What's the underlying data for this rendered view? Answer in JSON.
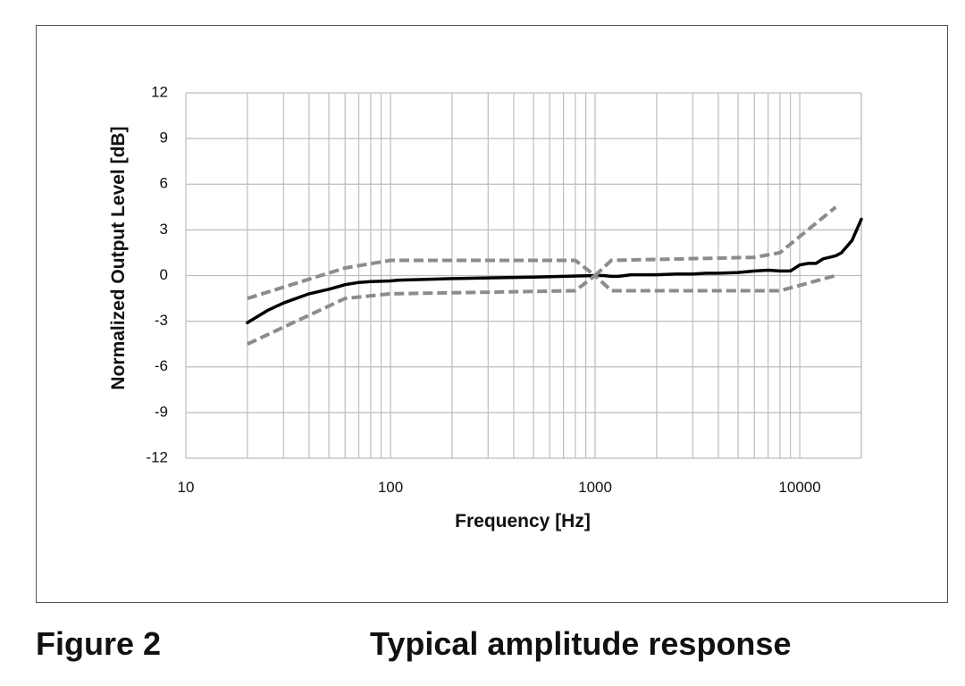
{
  "caption": {
    "label": "Figure 2",
    "text": "Typical amplitude response"
  },
  "chart_data": {
    "type": "line",
    "title": "",
    "xlabel": "Frequency [Hz]",
    "ylabel": "Normalized Output Level [dB]",
    "x_scale": "log",
    "xlim": [
      10,
      20000
    ],
    "ylim": [
      -12,
      12
    ],
    "x_ticks": [
      10,
      100,
      1000,
      10000
    ],
    "x_tick_labels": [
      "10",
      "100",
      "1000",
      "10000"
    ],
    "y_ticks": [
      12,
      9,
      6,
      3,
      0,
      -3,
      -6,
      -9,
      -12
    ],
    "y_tick_labels": [
      "12",
      "9",
      "6",
      "3",
      "0",
      "-3",
      "-6",
      "-9",
      "-12"
    ],
    "grid": true,
    "colors": {
      "response": "#000000",
      "tolerance": "#8c8c8c",
      "grid": "#bdbdbd"
    },
    "series": [
      {
        "style": "solid",
        "color": "#000000",
        "x": [
          20,
          25,
          30,
          40,
          50,
          60,
          70,
          80,
          100,
          110,
          150,
          200,
          300,
          500,
          700,
          1000,
          1100,
          1200,
          1300,
          1500,
          2000,
          2500,
          3000,
          3500,
          4000,
          5000,
          6000,
          7000,
          8000,
          9000,
          10000,
          11000,
          12000,
          13000,
          14000,
          15000,
          16000,
          18000,
          20000
        ],
        "y": [
          -3.1,
          -2.3,
          -1.8,
          -1.2,
          -0.9,
          -0.6,
          -0.45,
          -0.4,
          -0.35,
          -0.3,
          -0.25,
          -0.2,
          -0.15,
          -0.1,
          -0.05,
          0.0,
          0.0,
          -0.05,
          -0.05,
          0.05,
          0.05,
          0.1,
          0.1,
          0.15,
          0.15,
          0.2,
          0.3,
          0.35,
          0.3,
          0.3,
          0.7,
          0.8,
          0.8,
          1.1,
          1.2,
          1.3,
          1.5,
          2.3,
          3.7
        ]
      },
      {
        "style": "dashed",
        "color": "#8c8c8c",
        "x": [
          20,
          60,
          100,
          800,
          1000,
          1200,
          6000,
          8000,
          15000
        ],
        "y": [
          -1.5,
          0.5,
          1.0,
          1.0,
          0.0,
          1.0,
          1.2,
          1.5,
          4.5
        ]
      },
      {
        "style": "dashed",
        "color": "#8c8c8c",
        "x": [
          20,
          60,
          100,
          800,
          1000,
          1200,
          6000,
          8000,
          15000
        ],
        "y": [
          -4.5,
          -1.5,
          -1.2,
          -1.0,
          0.0,
          -1.0,
          -1.0,
          -1.0,
          0.0
        ]
      }
    ]
  }
}
